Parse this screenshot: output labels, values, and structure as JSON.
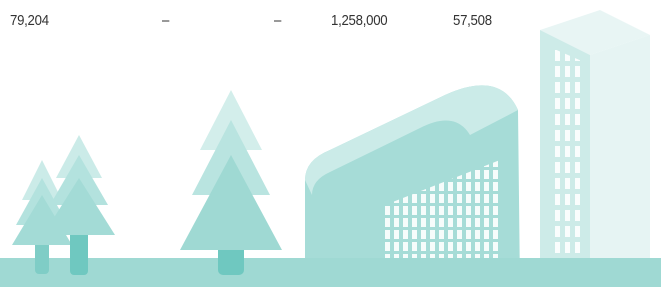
{
  "row": [
    "79,204",
    "–",
    "–",
    "1,258,000",
    "57,508"
  ]
}
